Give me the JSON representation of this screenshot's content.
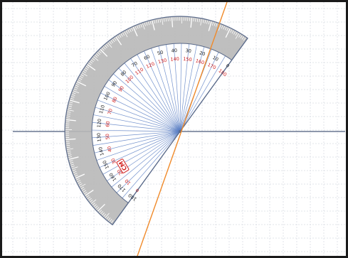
{
  "canvas": {
    "background": "#ffffff",
    "border_color": "#1a1a1a",
    "grid_color": "#d9dde3"
  },
  "axes": {
    "horizontal_line_color": "#4a5a7a"
  },
  "transversal": {
    "color": "#f08a2a"
  },
  "protractor": {
    "rim_color": "#5a6a8a",
    "band_fill": "#b8b8b8",
    "inner_fill": "#ffffff",
    "spoke_color": "#5b7fc4",
    "outer_label_color": "#222222",
    "inner_label_color": "#d2201f",
    "outer_labels": [
      "0",
      "10",
      "20",
      "30",
      "40",
      "50",
      "60",
      "70",
      "80",
      "90",
      "100",
      "110",
      "120",
      "130",
      "140",
      "150",
      "160",
      "170",
      "180"
    ],
    "inner_labels": [
      "180",
      "170",
      "160",
      "150",
      "140",
      "130",
      "120",
      "110",
      "100",
      "90",
      "80",
      "70",
      "60",
      "50",
      "40",
      "30",
      "20",
      "10",
      "0"
    ],
    "units_badge": "CM",
    "units_badge_icon": "cm-badge-icon"
  }
}
